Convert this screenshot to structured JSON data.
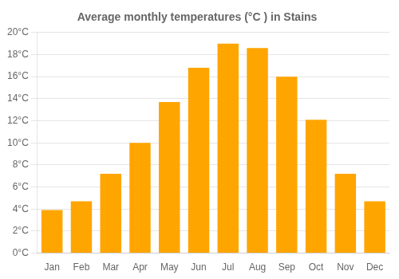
{
  "chart_data": {
    "type": "bar",
    "title": "Average monthly temperatures (°C ) in Stains",
    "categories": [
      "Jan",
      "Feb",
      "Mar",
      "Apr",
      "May",
      "Jun",
      "Jul",
      "Aug",
      "Sep",
      "Oct",
      "Nov",
      "Dec"
    ],
    "values": [
      3.9,
      4.7,
      7.2,
      10.0,
      13.7,
      16.8,
      19.0,
      18.6,
      16.0,
      12.1,
      7.2,
      4.7
    ],
    "color": "#FFA500",
    "ylim": [
      0,
      20
    ],
    "yticks": [
      {
        "value": 0,
        "label": "0°C"
      },
      {
        "value": 2,
        "label": "2°C"
      },
      {
        "value": 4,
        "label": "4°C"
      },
      {
        "value": 6,
        "label": "6°C"
      },
      {
        "value": 8,
        "label": "8°C"
      },
      {
        "value": 10,
        "label": "10°C"
      },
      {
        "value": 12,
        "label": "12°C"
      },
      {
        "value": 14,
        "label": "14°C"
      },
      {
        "value": 16,
        "label": "16°C"
      },
      {
        "value": 18,
        "label": "18°C"
      },
      {
        "value": 20,
        "label": "20°C"
      }
    ],
    "grid": true
  }
}
